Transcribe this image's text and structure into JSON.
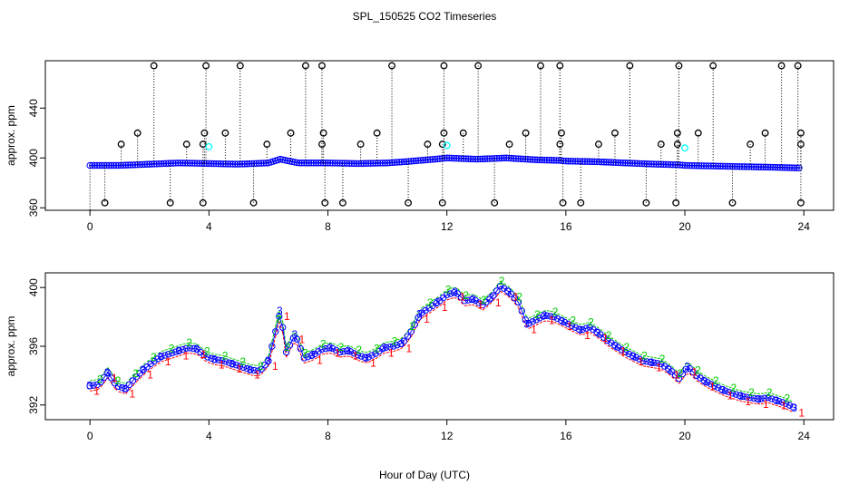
{
  "title": "SPL_150525  CO2 Timeseries",
  "xlabel": "Hour of Day (UTC)",
  "colors": {
    "fg": "#000000",
    "blue": "#0000ff",
    "cyan": "#00ffff",
    "red": "#ff0000",
    "green": "#00cc00",
    "gray": "#888888"
  },
  "chart_data": [
    {
      "type": "scatter",
      "name": "top-panel",
      "ylabel": "approx. ppm",
      "xlim": [
        -1.5,
        25
      ],
      "ylim": [
        358,
        478
      ],
      "xticks": [
        0,
        4,
        8,
        12,
        16,
        20,
        24
      ],
      "yticks": [
        360,
        400,
        440
      ],
      "baseline_anchors": [
        [
          0,
          394
        ],
        [
          1,
          394
        ],
        [
          2,
          395
        ],
        [
          3,
          396
        ],
        [
          4,
          395.5
        ],
        [
          5,
          395
        ],
        [
          6,
          396
        ],
        [
          6.4,
          399
        ],
        [
          7,
          396
        ],
        [
          8,
          396
        ],
        [
          9,
          395.5
        ],
        [
          10,
          396
        ],
        [
          10.6,
          397
        ],
        [
          11.6,
          399
        ],
        [
          12,
          400
        ],
        [
          13,
          399
        ],
        [
          14,
          400
        ],
        [
          15,
          398.5
        ],
        [
          15.8,
          398
        ],
        [
          16,
          397.5
        ],
        [
          17,
          397
        ],
        [
          18,
          396
        ],
        [
          19,
          395
        ],
        [
          19.8,
          394.5
        ],
        [
          20,
          394
        ],
        [
          21,
          393.5
        ],
        [
          22,
          393
        ],
        [
          23,
          392.5
        ],
        [
          23.8,
          392
        ]
      ],
      "spikes_high": [
        2.15,
        3.9,
        5.05,
        7.25,
        7.8,
        10.15,
        11.9,
        13.05,
        15.15,
        15.8,
        18.15,
        19.8,
        20.95,
        23.25,
        23.8
      ],
      "spikes_mid": [
        1.6,
        3.85,
        4.55,
        6.75,
        7.85,
        9.65,
        11.9,
        12.55,
        14.65,
        15.85,
        17.65,
        19.75,
        20.45,
        22.7,
        23.9
      ],
      "spikes_low": [
        1.05,
        3.25,
        3.8,
        5.95,
        7.8,
        9.1,
        11.35,
        11.85,
        14.1,
        15.8,
        17.1,
        19.2,
        19.75,
        22.2,
        23.9
      ],
      "spikes_bottom": [
        0.5,
        2.7,
        3.8,
        5.5,
        7.9,
        8.5,
        10.7,
        11.85,
        13.6,
        15.9,
        16.5,
        18.7,
        19.7,
        21.6,
        23.9
      ],
      "value_high": 474,
      "value_mid": 420,
      "value_low": 411,
      "value_bottom": 364,
      "cyan_points": [
        [
          4.0,
          409
        ],
        [
          12.0,
          410
        ],
        [
          20.0,
          408
        ]
      ]
    },
    {
      "type": "line",
      "name": "bottom-panel",
      "ylabel": "approx. ppm",
      "xlim": [
        -1.5,
        25
      ],
      "ylim": [
        391,
        401
      ],
      "xticks": [
        0,
        4,
        8,
        12,
        16,
        20,
        24
      ],
      "yticks": [
        392,
        396,
        400
      ],
      "series_labels": [
        "1",
        "2",
        "3"
      ],
      "x": [
        0,
        0.3,
        0.6,
        0.9,
        1.2,
        1.5,
        1.8,
        2.1,
        2.4,
        2.7,
        3.0,
        3.3,
        3.6,
        3.9,
        4.2,
        4.5,
        4.8,
        5.1,
        5.4,
        5.7,
        6.0,
        6.3,
        6.4,
        6.6,
        6.9,
        7.2,
        7.5,
        7.8,
        8.1,
        8.4,
        8.7,
        9.0,
        9.3,
        9.6,
        9.9,
        10.2,
        10.5,
        10.8,
        11.1,
        11.4,
        11.7,
        12.0,
        12.3,
        12.6,
        12.9,
        13.2,
        13.5,
        13.8,
        14.1,
        14.4,
        14.7,
        15.0,
        15.3,
        15.6,
        15.9,
        16.2,
        16.5,
        16.8,
        17.1,
        17.4,
        17.7,
        18.0,
        18.3,
        18.6,
        18.9,
        19.2,
        19.5,
        19.8,
        20.1,
        20.4,
        20.7,
        21.0,
        21.3,
        21.6,
        21.9,
        22.2,
        22.5,
        22.8,
        23.1,
        23.4,
        23.7
      ],
      "y": [
        393.3,
        393.4,
        394.2,
        393.3,
        393.1,
        393.8,
        394.4,
        394.9,
        395.3,
        395.5,
        395.7,
        395.9,
        395.8,
        395.3,
        395.1,
        395.0,
        394.8,
        394.6,
        394.4,
        394.3,
        395.0,
        397.5,
        398.4,
        395.6,
        396.8,
        395.2,
        395.4,
        395.8,
        395.9,
        395.6,
        395.7,
        395.4,
        395.2,
        395.5,
        395.9,
        396.0,
        396.2,
        397.0,
        398.2,
        398.6,
        399.0,
        399.5,
        399.7,
        399.1,
        399.2,
        398.8,
        399.3,
        400.1,
        399.7,
        399.0,
        397.5,
        397.8,
        398.1,
        398.0,
        397.7,
        397.4,
        397.1,
        397.3,
        396.9,
        396.4,
        396.0,
        395.6,
        395.3,
        395.0,
        394.9,
        394.8,
        394.4,
        393.8,
        394.6,
        394.0,
        393.6,
        393.3,
        393.0,
        392.8,
        392.6,
        392.5,
        392.4,
        392.5,
        392.3,
        392.1,
        391.8
      ]
    }
  ]
}
